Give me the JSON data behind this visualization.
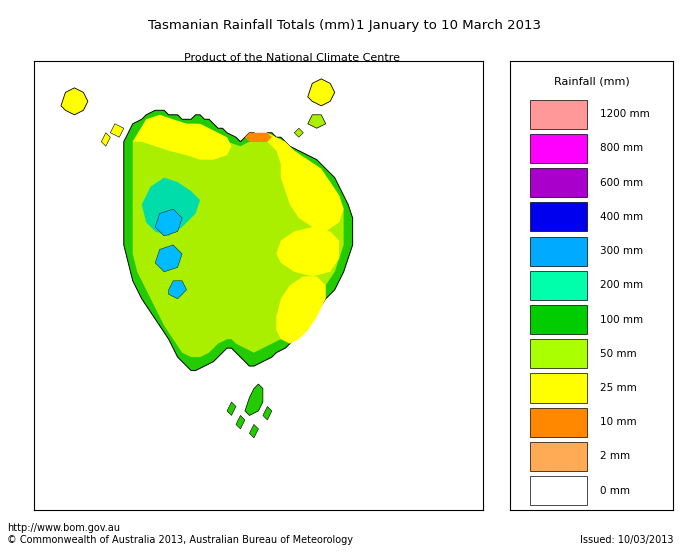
{
  "title_left": "Tasmanian Rainfall Totals (mm)",
  "title_right": "1 January to 10 March 2013",
  "subtitle": "Product of the National Climate Centre",
  "footer_url": "http://www.bom.gov.au",
  "footer_copyright": "© Commonwealth of Australia 2013, Australian Bureau of Meteorology",
  "footer_issued": "Issued: 10/03/2013",
  "legend_title": "Rainfall (mm)",
  "legend_labels": [
    "1200 mm",
    "800 mm",
    "600 mm",
    "400 mm",
    "300 mm",
    "200 mm",
    "100 mm",
    "50 mm",
    "25 mm",
    "10 mm",
    "2 mm",
    "0 mm"
  ],
  "legend_colors": [
    "#FF9999",
    "#FF00FF",
    "#AA00CC",
    "#0000EE",
    "#00AAFF",
    "#00FFAA",
    "#00CC00",
    "#AAFF00",
    "#FFFF00",
    "#FF8800",
    "#FFAA55",
    "#FFFFFF"
  ],
  "bg_color": "#FFFFFF"
}
